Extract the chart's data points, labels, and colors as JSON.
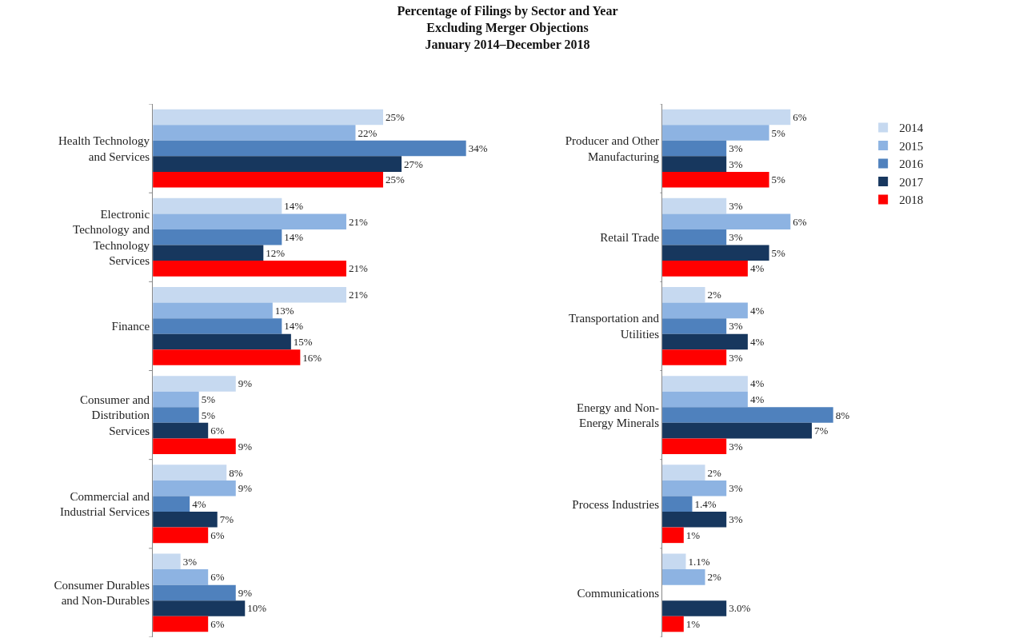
{
  "chart_data": [
    {
      "type": "bar",
      "orientation": "horizontal",
      "title": "Percentage of Filings by Sector and Year\nExcluding Merger Objections\nJanuary 2014–December 2018",
      "legend": "right",
      "tick_labels": "y",
      "categories": [
        "Health Technology\nand Services",
        "Electronic\nTechnology and\nTechnology\nServices",
        "Finance",
        "Consumer and\nDistribution\nServices",
        "Commercial and\nIndustrial Services",
        "Consumer Durables\nand Non-Durables"
      ],
      "series": [
        {
          "name": "2014",
          "color": "#c6d9f0",
          "values": [
            25,
            14,
            21,
            9,
            8,
            3
          ],
          "value_labels": [
            "25%",
            "14%",
            "21%",
            "9%",
            "8%",
            "3%"
          ]
        },
        {
          "name": "2015",
          "color": "#8db3e2",
          "values": [
            22,
            21,
            13,
            5,
            9,
            6
          ],
          "value_labels": [
            "22%",
            "21%",
            "13%",
            "5%",
            "9%",
            "6%"
          ]
        },
        {
          "name": "2016",
          "color": "#4f81bd",
          "values": [
            34,
            14,
            14,
            5,
            4,
            9
          ],
          "value_labels": [
            "34%",
            "14%",
            "14%",
            "5%",
            "4%",
            "9%"
          ]
        },
        {
          "name": "2017",
          "color": "#17375e",
          "values": [
            27,
            12,
            15,
            6,
            7,
            10
          ],
          "value_labels": [
            "27%",
            "12%",
            "15%",
            "6%",
            "7%",
            "10%"
          ]
        },
        {
          "name": "2018",
          "color": "#ff0000",
          "values": [
            25,
            21,
            16,
            9,
            6,
            6
          ],
          "value_labels": [
            "25%",
            "21%",
            "16%",
            "9%",
            "6%",
            "6%"
          ]
        }
      ]
    },
    {
      "type": "bar",
      "orientation": "horizontal",
      "legend": "right",
      "tick_labels": "y",
      "categories": [
        "Producer and Other\nManufacturing",
        "Retail Trade",
        "Transportation and\nUtilities",
        "Energy and Non-\nEnergy Minerals",
        "Process Industries",
        "Communications"
      ],
      "series": [
        {
          "name": "2014",
          "color": "#c6d9f0",
          "values": [
            6,
            3,
            2,
            4,
            2,
            1.1
          ],
          "value_labels": [
            "6%",
            "3%",
            "2%",
            "4%",
            "2%",
            "1.1%"
          ]
        },
        {
          "name": "2015",
          "color": "#8db3e2",
          "values": [
            5,
            6,
            4,
            4,
            3,
            2
          ],
          "value_labels": [
            "5%",
            "6%",
            "4%",
            "4%",
            "3%",
            "2%"
          ]
        },
        {
          "name": "2016",
          "color": "#4f81bd",
          "values": [
            3,
            3,
            3,
            8,
            1.4,
            null
          ],
          "value_labels": [
            "3%",
            "3%",
            "3%",
            "8%",
            "1.4%",
            null
          ]
        },
        {
          "name": "2017",
          "color": "#17375e",
          "values": [
            3,
            5,
            4,
            7,
            3,
            3.0
          ],
          "value_labels": [
            "3%",
            "5%",
            "4%",
            "7%",
            "3%",
            "3.0%"
          ]
        },
        {
          "name": "2018",
          "color": "#ff0000",
          "values": [
            5,
            4,
            3,
            3,
            1,
            1
          ],
          "value_labels": [
            "5%",
            "4%",
            "3%",
            "3%",
            "1%",
            "1%"
          ]
        }
      ]
    }
  ]
}
